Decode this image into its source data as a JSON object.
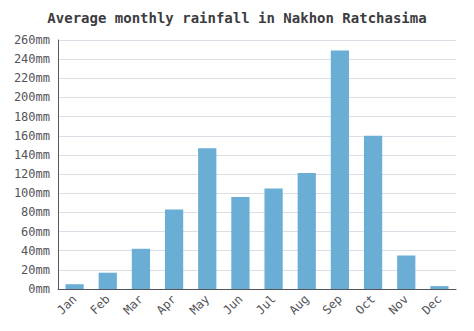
{
  "chart_data": {
    "type": "bar",
    "title": "Average monthly rainfall in Nakhon Ratchasima",
    "categories": [
      "Jan",
      "Feb",
      "Mar",
      "Apr",
      "May",
      "Jun",
      "Jul",
      "Aug",
      "Sep",
      "Oct",
      "Nov",
      "Dec"
    ],
    "values": [
      5,
      17,
      42,
      83,
      147,
      96,
      105,
      121,
      249,
      160,
      35,
      3
    ],
    "color": "#6aaed6",
    "ylim": [
      0,
      260
    ],
    "yticks": [
      {
        "value": 0,
        "label": "0mm"
      },
      {
        "value": 20,
        "label": "20mm"
      },
      {
        "value": 40,
        "label": "40mm"
      },
      {
        "value": 60,
        "label": "60mm"
      },
      {
        "value": 80,
        "label": "80mm"
      },
      {
        "value": 100,
        "label": "100mm"
      },
      {
        "value": 120,
        "label": "120mm"
      },
      {
        "value": 140,
        "label": "140mm"
      },
      {
        "value": 160,
        "label": "160mm"
      },
      {
        "value": 180,
        "label": "180mm"
      },
      {
        "value": 200,
        "label": "200mm"
      },
      {
        "value": 220,
        "label": "220mm"
      },
      {
        "value": 240,
        "label": "240mm"
      },
      {
        "value": 260,
        "label": "260mm"
      }
    ],
    "grid": true
  }
}
